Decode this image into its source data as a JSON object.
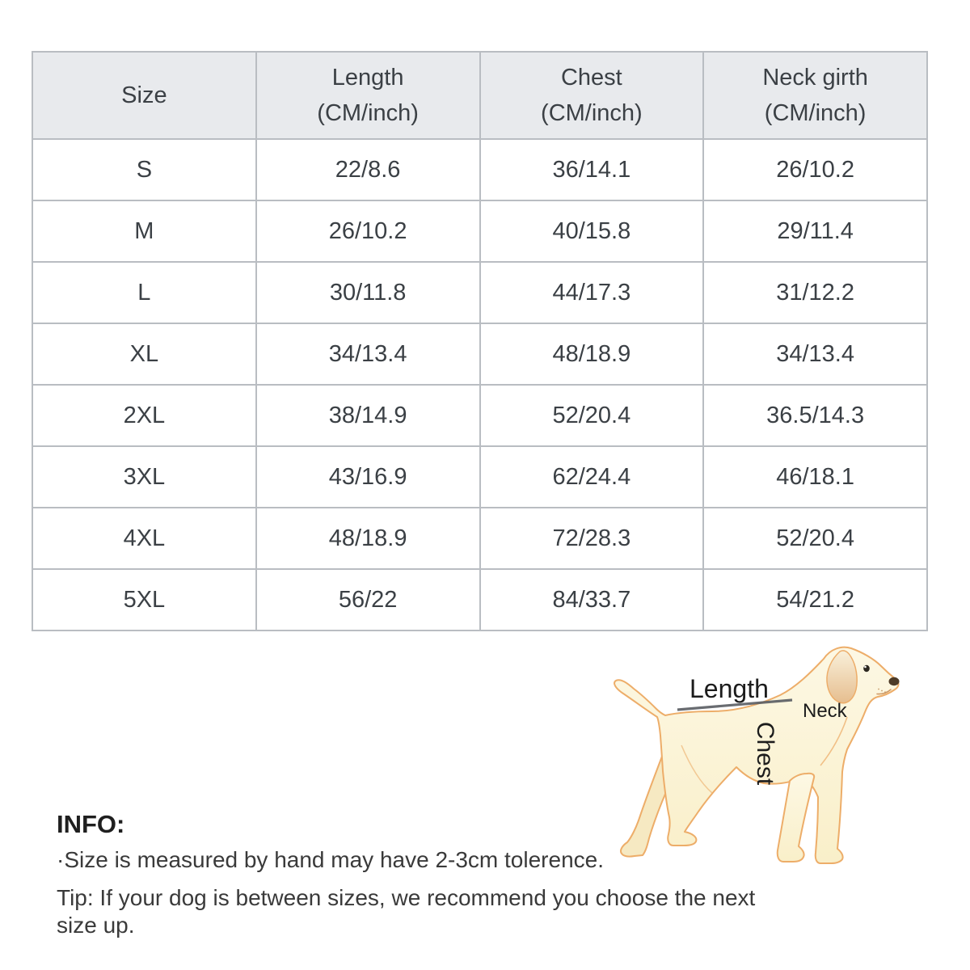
{
  "chart_data": {
    "type": "table",
    "title": "Dog apparel size chart",
    "columns": [
      "Size",
      "Length (CM/inch)",
      "Chest (CM/inch)",
      "Neck girth (CM/inch)"
    ],
    "rows": [
      [
        "S",
        "22/8.6",
        "36/14.1",
        "26/10.2"
      ],
      [
        "M",
        "26/10.2",
        "40/15.8",
        "29/11.4"
      ],
      [
        "L",
        "30/11.8",
        "44/17.3",
        "31/12.2"
      ],
      [
        "XL",
        "34/13.4",
        "48/18.9",
        "34/13.4"
      ],
      [
        "2XL",
        "38/14.9",
        "52/20.4",
        "36.5/14.3"
      ],
      [
        "3XL",
        "43/16.9",
        "62/24.4",
        "46/18.1"
      ],
      [
        "4XL",
        "48/18.9",
        "72/28.3",
        "52/20.4"
      ],
      [
        "5XL",
        "56/22",
        "84/33.7",
        "54/21.2"
      ]
    ]
  },
  "table": {
    "headers": [
      {
        "title": "Size",
        "sub": ""
      },
      {
        "title": "Length",
        "sub": "(CM/inch)"
      },
      {
        "title": "Chest",
        "sub": "(CM/inch)"
      },
      {
        "title": "Neck girth",
        "sub": "(CM/inch)"
      }
    ],
    "rows": [
      [
        "S",
        "22/8.6",
        "36/14.1",
        "26/10.2"
      ],
      [
        "M",
        "26/10.2",
        "40/15.8",
        "29/11.4"
      ],
      [
        "L",
        "30/11.8",
        "44/17.3",
        "31/12.2"
      ],
      [
        "XL",
        "34/13.4",
        "48/18.9",
        "34/13.4"
      ],
      [
        "2XL",
        "38/14.9",
        "52/20.4",
        "36.5/14.3"
      ],
      [
        "3XL",
        "43/16.9",
        "62/24.4",
        "46/18.1"
      ],
      [
        "4XL",
        "48/18.9",
        "72/28.3",
        "52/20.4"
      ],
      [
        "5XL",
        "56/22",
        "84/33.7",
        "54/21.2"
      ]
    ]
  },
  "diagram": {
    "length_label": "Length",
    "neck_label": "Neck",
    "chest_label": "Chest"
  },
  "info": {
    "heading": "INFO:",
    "line1": "·Size is measured by hand may have 2-3cm tolerence.",
    "line2": "Tip: If your dog is between sizes, we recommend you choose the next size up."
  },
  "colors": {
    "header_bg": "#e8eaed",
    "border": "#b9bdc2",
    "table_text": "#3b4045",
    "dog_body": "#fcf5da",
    "dog_far_leg": "#f6e9c2",
    "dog_outline": "#edad69",
    "dog_ear_dark": "#e6be8f",
    "dog_nose": "#4e3b27",
    "measure_line": "#595d62"
  }
}
